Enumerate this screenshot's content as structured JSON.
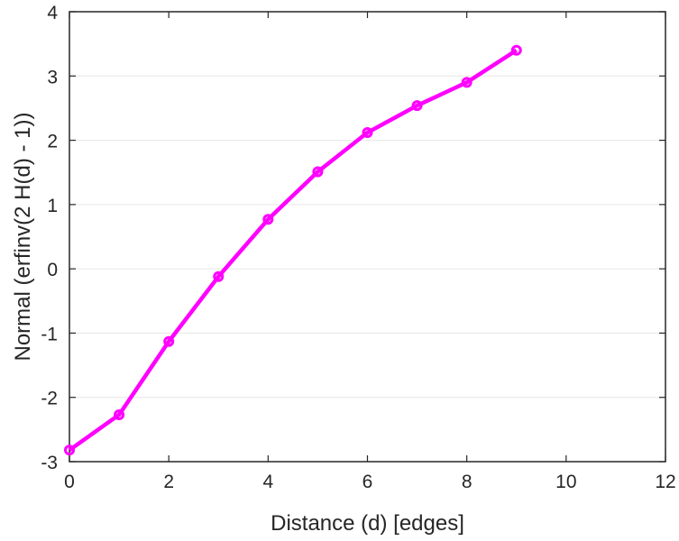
{
  "chart_data": {
    "type": "line",
    "title": "",
    "xlabel": "Distance (d) [edges]",
    "ylabel": "Normal (erfinv(2 H(d) - 1))",
    "xlim": [
      0,
      12
    ],
    "ylim": [
      -3,
      4
    ],
    "xticks": [
      0,
      2,
      4,
      6,
      8,
      10,
      12
    ],
    "yticks": [
      -3,
      -2,
      -1,
      0,
      1,
      2,
      3,
      4
    ],
    "grid": "horizontal",
    "legend": "none",
    "series": [
      {
        "color": "#ff00ff",
        "marker": "circle",
        "x": [
          0,
          1,
          2,
          3,
          4,
          5,
          6,
          7,
          8,
          9
        ],
        "y": [
          -2.82,
          -2.27,
          -1.13,
          -0.12,
          0.77,
          1.51,
          2.12,
          2.54,
          2.9,
          3.4
        ]
      }
    ]
  }
}
